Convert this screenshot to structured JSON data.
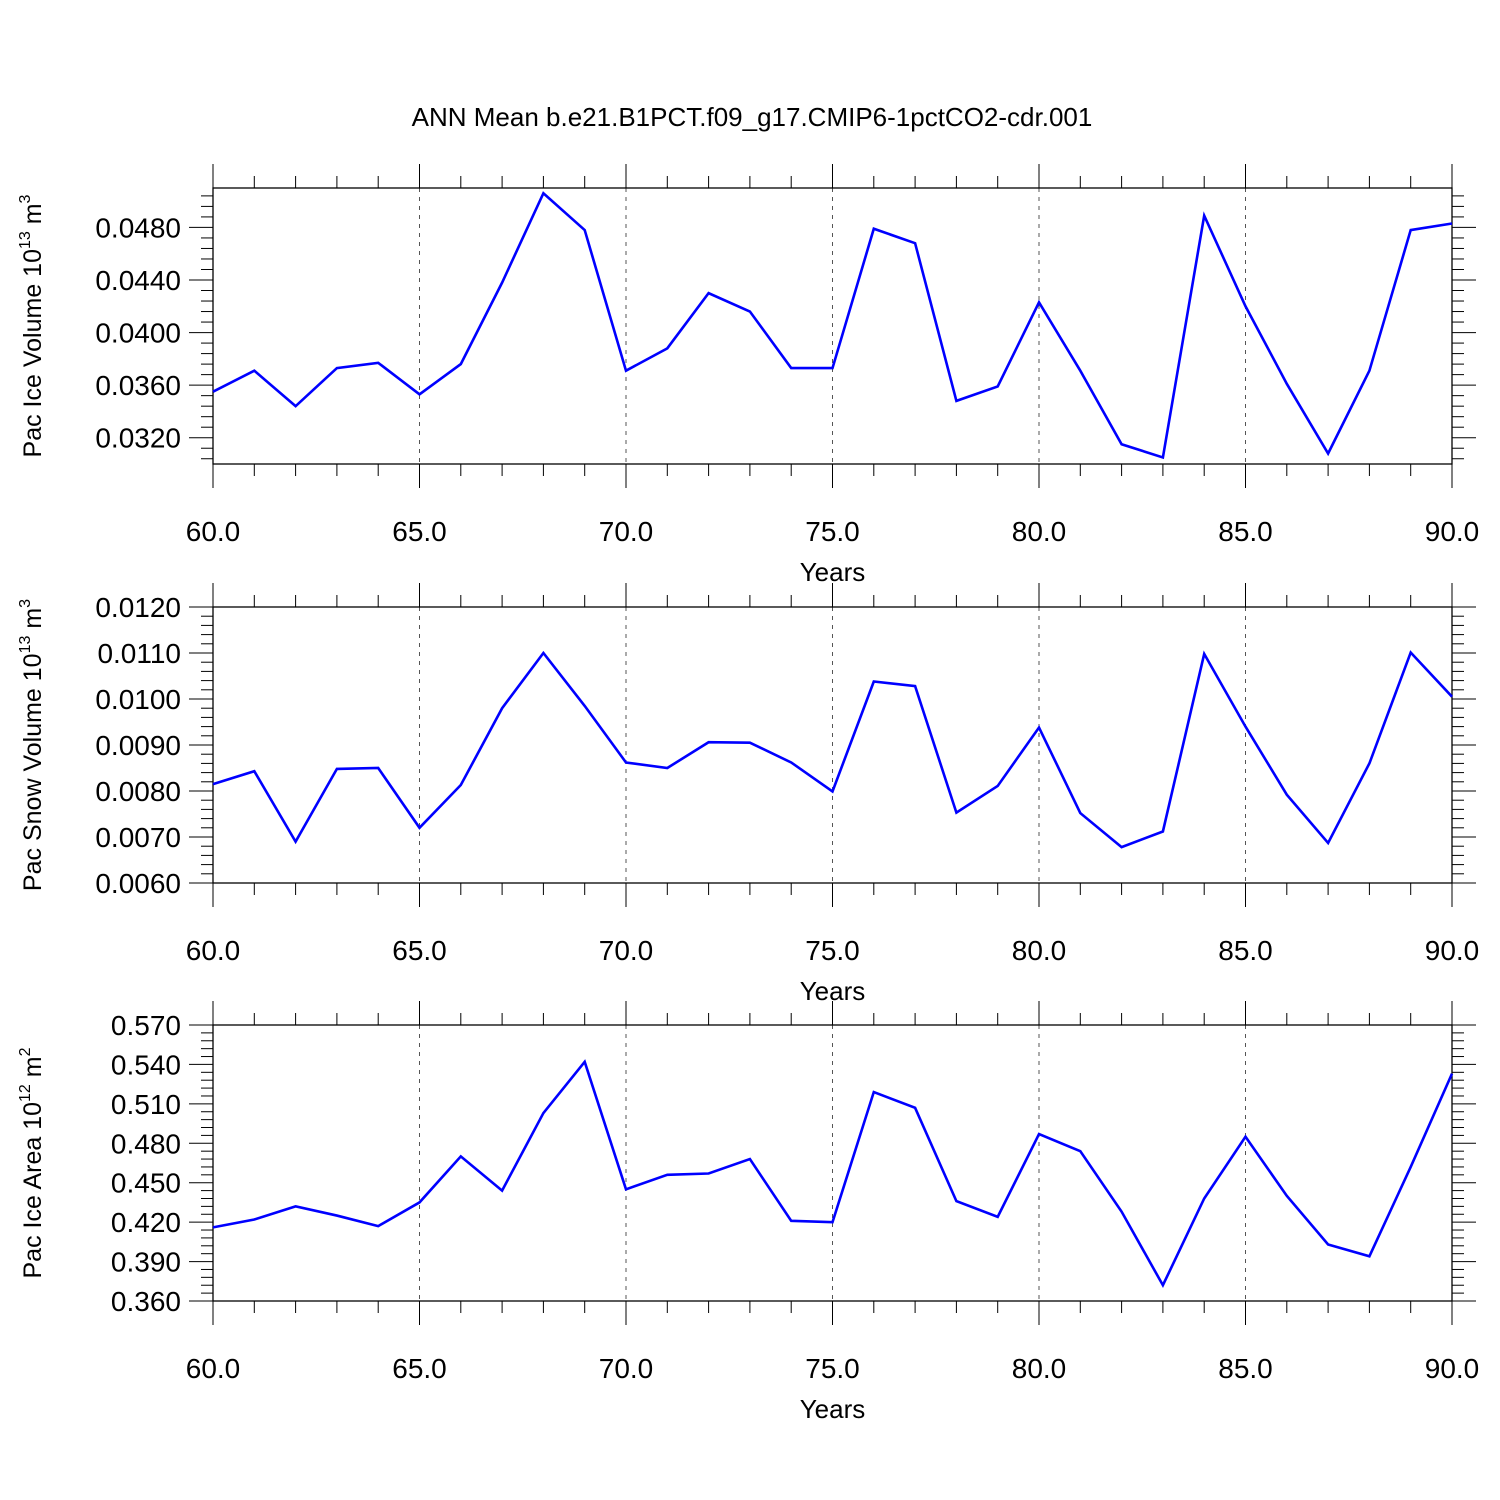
{
  "title": "ANN Mean b.e21.B1PCT.f09_g17.CMIP6-1pctCO2-cdr.001",
  "colors": {
    "line": "#0000ff",
    "axis": "#000000",
    "grid": "#555555"
  },
  "chart_data": [
    {
      "type": "line",
      "xlabel": "Years",
      "ylabel": {
        "prefix": "Pac Ice Volume 10",
        "exponent": "13",
        "unit": " m",
        "unit_exponent": "3"
      },
      "xlim": [
        60,
        90
      ],
      "ylim": [
        0.03,
        0.051
      ],
      "xticks": [
        60,
        65,
        70,
        75,
        80,
        85,
        90
      ],
      "xticklabels": [
        "60.0",
        "65.0",
        "70.0",
        "75.0",
        "80.0",
        "85.0",
        "90.0"
      ],
      "yticks": [
        0.032,
        0.036,
        0.04,
        0.044,
        0.048
      ],
      "yticklabels": [
        "0.0320",
        "0.0360",
        "0.0400",
        "0.0440",
        "0.0480"
      ],
      "x": [
        60,
        61,
        62,
        63,
        64,
        65,
        66,
        67,
        68,
        69,
        70,
        71,
        72,
        73,
        74,
        75,
        76,
        77,
        78,
        79,
        80,
        81,
        82,
        83,
        84,
        85,
        86,
        87,
        88,
        89,
        90
      ],
      "series": [
        {
          "values": [
            0.0355,
            0.0371,
            0.0344,
            0.0373,
            0.0377,
            0.0353,
            0.0376,
            0.0438,
            0.0506,
            0.0478,
            0.0371,
            0.0388,
            0.043,
            0.0416,
            0.0373,
            0.0373,
            0.0479,
            0.0468,
            0.0348,
            0.0359,
            0.0423,
            0.0371,
            0.0315,
            0.0305,
            0.0489,
            0.042,
            0.0361,
            0.0308,
            0.0371,
            0.0478,
            0.0483
          ]
        }
      ]
    },
    {
      "type": "line",
      "xlabel": "Years",
      "ylabel": {
        "prefix": "Pac Snow Volume 10",
        "exponent": "13",
        "unit": " m",
        "unit_exponent": "3"
      },
      "xlim": [
        60,
        90
      ],
      "ylim": [
        0.006,
        0.012
      ],
      "xticks": [
        60,
        65,
        70,
        75,
        80,
        85,
        90
      ],
      "xticklabels": [
        "60.0",
        "65.0",
        "70.0",
        "75.0",
        "80.0",
        "85.0",
        "90.0"
      ],
      "yticks": [
        0.006,
        0.007,
        0.008,
        0.009,
        0.01,
        0.011,
        0.012
      ],
      "yticklabels": [
        "0.0060",
        "0.0070",
        "0.0080",
        "0.0090",
        "0.0100",
        "0.0110",
        "0.0120"
      ],
      "x": [
        60,
        61,
        62,
        63,
        64,
        65,
        66,
        67,
        68,
        69,
        70,
        71,
        72,
        73,
        74,
        75,
        76,
        77,
        78,
        79,
        80,
        81,
        82,
        83,
        84,
        85,
        86,
        87,
        88,
        89,
        90
      ],
      "series": [
        {
          "values": [
            0.00815,
            0.00843,
            0.0069,
            0.00848,
            0.0085,
            0.0072,
            0.00813,
            0.0098,
            0.011,
            0.00985,
            0.00862,
            0.0085,
            0.00906,
            0.00905,
            0.00862,
            0.00799,
            0.01038,
            0.01028,
            0.00753,
            0.00811,
            0.00938,
            0.00752,
            0.00678,
            0.00712,
            0.01098,
            0.0094,
            0.00792,
            0.00687,
            0.0086,
            0.01101,
            0.01005
          ]
        }
      ]
    },
    {
      "type": "line",
      "xlabel": "Years",
      "ylabel": {
        "prefix": "Pac Ice Area 10",
        "exponent": "12",
        "unit": " m",
        "unit_exponent": "2"
      },
      "xlim": [
        60,
        90
      ],
      "ylim": [
        0.36,
        0.57
      ],
      "xticks": [
        60,
        65,
        70,
        75,
        80,
        85,
        90
      ],
      "xticklabels": [
        "60.0",
        "65.0",
        "70.0",
        "75.0",
        "80.0",
        "85.0",
        "90.0"
      ],
      "yticks": [
        0.36,
        0.39,
        0.42,
        0.45,
        0.48,
        0.51,
        0.54,
        0.57
      ],
      "yticklabels": [
        "0.360",
        "0.390",
        "0.420",
        "0.450",
        "0.480",
        "0.510",
        "0.540",
        "0.570"
      ],
      "x": [
        60,
        61,
        62,
        63,
        64,
        65,
        66,
        67,
        68,
        69,
        70,
        71,
        72,
        73,
        74,
        75,
        76,
        77,
        78,
        79,
        80,
        81,
        82,
        83,
        84,
        85,
        86,
        87,
        88,
        89,
        90
      ],
      "series": [
        {
          "values": [
            0.416,
            0.422,
            0.432,
            0.425,
            0.417,
            0.435,
            0.47,
            0.444,
            0.503,
            0.542,
            0.445,
            0.456,
            0.457,
            0.468,
            0.421,
            0.42,
            0.519,
            0.507,
            0.436,
            0.424,
            0.487,
            0.474,
            0.428,
            0.372,
            0.438,
            0.485,
            0.44,
            0.403,
            0.394,
            0.462,
            0.533
          ]
        }
      ]
    }
  ]
}
